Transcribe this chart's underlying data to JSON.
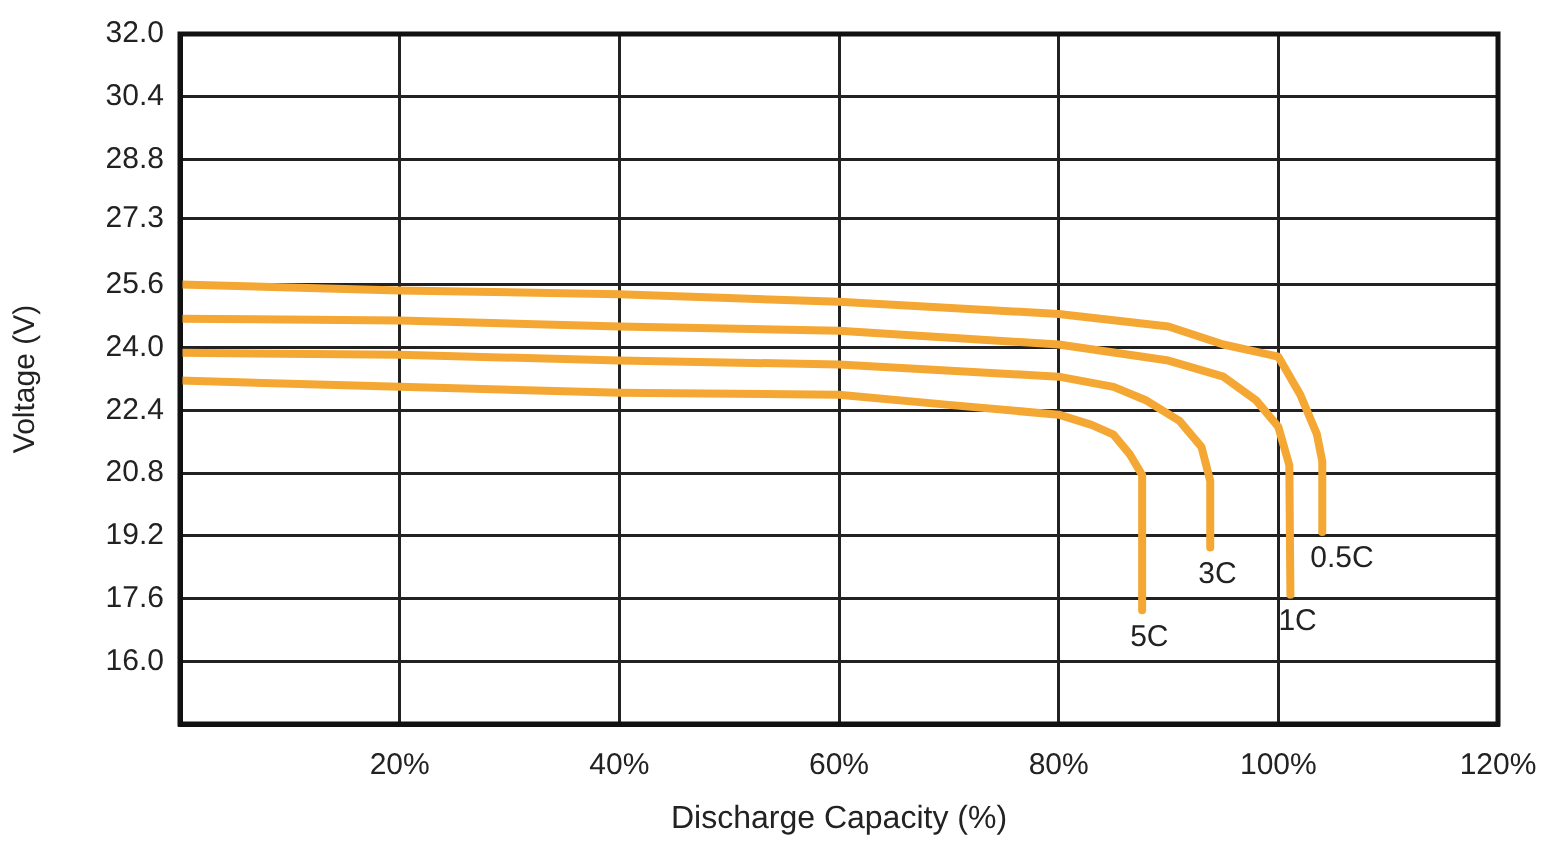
{
  "chart_data": {
    "type": "line",
    "xlabel": "Discharge Capacity (%)",
    "ylabel": "Voltage (V)",
    "xlim": [
      0,
      120
    ],
    "xticks": [
      {
        "value": 20,
        "label": "20%"
      },
      {
        "value": 40,
        "label": "40%"
      },
      {
        "value": 60,
        "label": "60%"
      },
      {
        "value": 80,
        "label": "80%"
      },
      {
        "value": 100,
        "label": "100%"
      },
      {
        "value": 120,
        "label": "120%"
      }
    ],
    "ylim": [
      14.4,
      32
    ],
    "yticks": [
      {
        "value": 16,
        "label": "16.0"
      },
      {
        "value": 17.6,
        "label": "17.6"
      },
      {
        "value": 19.2,
        "label": "19.2"
      },
      {
        "value": 20.8,
        "label": "20.8"
      },
      {
        "value": 22.4,
        "label": "22.4"
      },
      {
        "value": 24,
        "label": "24.0"
      },
      {
        "value": 25.6,
        "label": "25.6"
      },
      27.3,
      {
        "value": 28.8,
        "label": "28.8"
      },
      {
        "value": 30.4,
        "label": "30.4"
      },
      {
        "value": 32,
        "label": "32.0"
      }
    ],
    "grid": true,
    "legend": false,
    "marker": "none",
    "line_style": "solid",
    "series": [
      {
        "name": "0.5C",
        "color": "#f5a733",
        "x": [
          0,
          20,
          40,
          60,
          80,
          90,
          95,
          100,
          102,
          103.5,
          104,
          104
        ],
        "values": [
          25.61,
          25.46,
          25.36,
          25.17,
          24.86,
          24.54,
          24.08,
          23.77,
          22.8,
          21.8,
          21.1,
          19.3
        ]
      },
      {
        "name": "1C",
        "color": "#f5a733",
        "x": [
          0,
          20,
          40,
          60,
          80,
          90,
          95,
          98,
          100,
          101,
          101.1
        ],
        "values": [
          24.74,
          24.69,
          24.54,
          24.43,
          24.08,
          23.67,
          23.26,
          22.65,
          21.98,
          21.0,
          17.7
        ]
      },
      {
        "name": "3C",
        "color": "#f5a733",
        "x": [
          0,
          20,
          40,
          60,
          80,
          85,
          88,
          91,
          93,
          93.8,
          93.8
        ],
        "values": [
          23.87,
          23.82,
          23.67,
          23.57,
          23.26,
          23.0,
          22.65,
          22.13,
          21.47,
          20.6,
          18.9
        ]
      },
      {
        "name": "5C",
        "color": "#f5a733",
        "x": [
          0,
          20,
          40,
          60,
          70,
          80,
          83,
          85,
          86.5,
          87.6,
          87.6
        ],
        "values": [
          23.16,
          23.0,
          22.85,
          22.8,
          22.54,
          22.29,
          22.03,
          21.78,
          21.27,
          20.75,
          17.3
        ]
      }
    ]
  }
}
